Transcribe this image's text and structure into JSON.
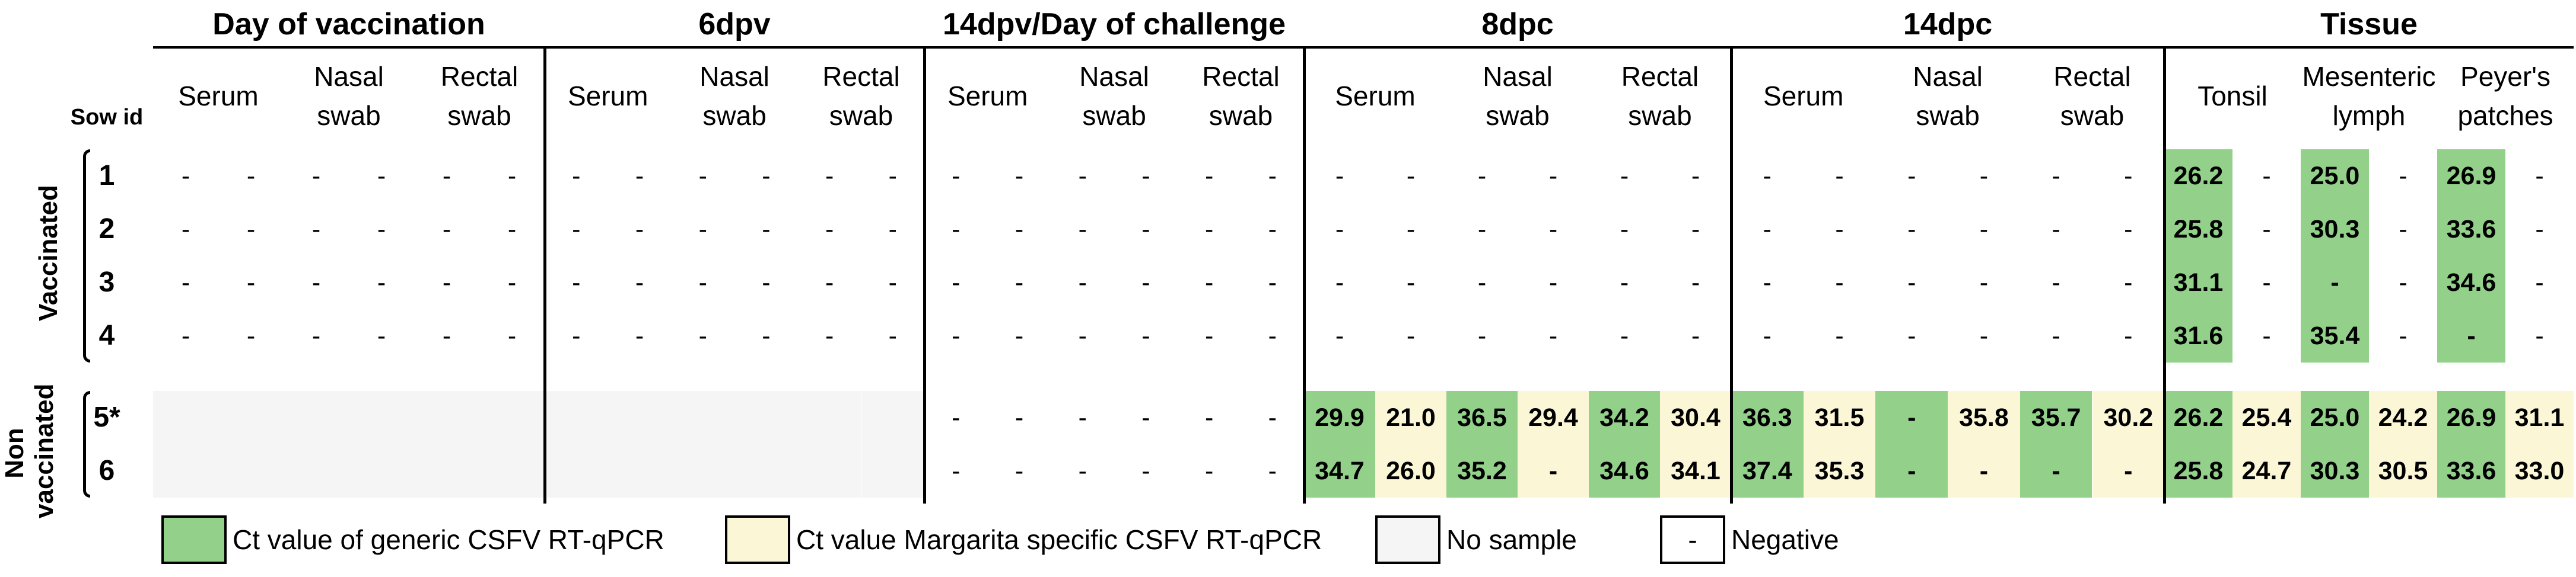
{
  "colors": {
    "generic": "#93d18b",
    "margarita": "#fbf7d6",
    "no_sample": "#f5f5f5"
  },
  "header": {
    "sections": [
      "Day of vaccination",
      "6dpv",
      "14dpv/Day of challenge",
      "8dpc",
      "14dpc",
      "Tissue"
    ],
    "sow_id": "Sow id",
    "sample_types": [
      "Serum",
      "Nasal\nswab",
      "Rectal\nswab"
    ],
    "tissue_types": [
      "Tonsil",
      "Mesenteric\nlymph",
      "Peyer's\npatches"
    ]
  },
  "groups": {
    "vaccinated": "Vaccinated",
    "non_vaccinated": "Non\nvaccinated"
  },
  "rows": [
    {
      "id": "1",
      "cells": [
        "-",
        "-",
        "-",
        "-",
        "-",
        "-",
        "-",
        "-",
        "-",
        "-",
        "-",
        "-",
        "-",
        "-",
        "-",
        "-",
        "-",
        "-",
        "-",
        "-",
        "-",
        "-",
        "-",
        "-",
        "-",
        "-",
        "-",
        "-",
        "-",
        "-",
        "26.2",
        "-",
        "25.0",
        "-",
        "26.9",
        "-"
      ]
    },
    {
      "id": "2",
      "cells": [
        "-",
        "-",
        "-",
        "-",
        "-",
        "-",
        "-",
        "-",
        "-",
        "-",
        "-",
        "-",
        "-",
        "-",
        "-",
        "-",
        "-",
        "-",
        "-",
        "-",
        "-",
        "-",
        "-",
        "-",
        "-",
        "-",
        "-",
        "-",
        "-",
        "-",
        "25.8",
        "-",
        "30.3",
        "-",
        "33.6",
        "-"
      ]
    },
    {
      "id": "3",
      "cells": [
        "-",
        "-",
        "-",
        "-",
        "-",
        "-",
        "-",
        "-",
        "-",
        "-",
        "-",
        "-",
        "-",
        "-",
        "-",
        "-",
        "-",
        "-",
        "-",
        "-",
        "-",
        "-",
        "-",
        "-",
        "-",
        "-",
        "-",
        "-",
        "-",
        "-",
        "31.1",
        "-",
        "-",
        "-",
        "34.6",
        "-"
      ]
    },
    {
      "id": "4",
      "cells": [
        "-",
        "-",
        "-",
        "-",
        "-",
        "-",
        "-",
        "-",
        "-",
        "-",
        "-",
        "-",
        "-",
        "-",
        "-",
        "-",
        "-",
        "-",
        "-",
        "-",
        "-",
        "-",
        "-",
        "-",
        "-",
        "-",
        "-",
        "-",
        "-",
        "-",
        "31.6",
        "-",
        "35.4",
        "-",
        "-",
        "-"
      ]
    },
    {
      "id": "5*",
      "cells": [
        "",
        "",
        "",
        "",
        "",
        "",
        "",
        "",
        "",
        "",
        "",
        "",
        "-",
        "-",
        "-",
        "-",
        "-",
        "-",
        "29.9",
        "21.0",
        "36.5",
        "29.4",
        "34.2",
        "30.4",
        "36.3",
        "31.5",
        "-",
        "35.8",
        "35.7",
        "30.2",
        "26.2",
        "25.4",
        "25.0",
        "24.2",
        "26.9",
        "31.1"
      ]
    },
    {
      "id": "6",
      "cells": [
        "",
        "",
        "",
        "",
        "",
        "",
        "",
        "",
        "",
        "",
        "",
        "",
        "-",
        "-",
        "-",
        "-",
        "-",
        "-",
        "34.7",
        "26.0",
        "35.2",
        "-",
        "34.6",
        "34.1",
        "37.4",
        "35.3",
        "-",
        "-",
        "-",
        "-",
        "25.8",
        "24.7",
        "30.3",
        "30.5",
        "33.6",
        "33.0"
      ]
    }
  ],
  "legend": {
    "generic": "Ct value of generic CSFV RT-qPCR",
    "margarita": "Ct value Margarita specific CSFV RT-qPCR",
    "no_sample": "No sample",
    "negative_symbol": "-",
    "negative": "Negative"
  }
}
